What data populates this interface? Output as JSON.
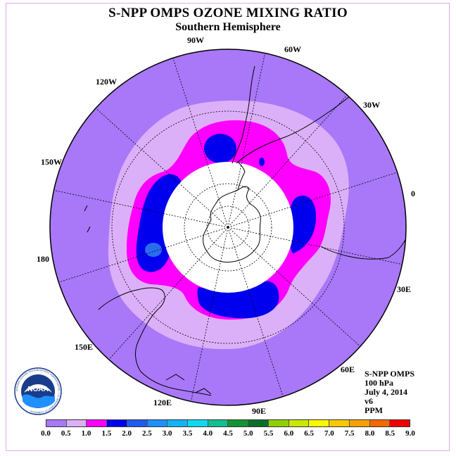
{
  "header": {
    "title": "S-NPP OMPS OZONE MIXING RATIO",
    "subtitle": "Southern Hemisphere"
  },
  "map": {
    "projection": "south polar stereographic",
    "meridian_labels": [
      "0",
      "30E",
      "60E",
      "90E",
      "120E",
      "150E",
      "180",
      "150W",
      "120W",
      "90W",
      "60W",
      "30W"
    ],
    "colors": {
      "background": "#a878f8",
      "light_ring": "#dcb0f8",
      "magenta": "#ff00ff",
      "blue": "#0000ee",
      "mid_blue": "#2a6cf0",
      "no_data": "#ffffff",
      "coastline": "#000000"
    }
  },
  "info": {
    "lines": [
      "S-NPP OMPS",
      "100 hPa",
      "July 4, 2014",
      "v6",
      "PPM"
    ]
  },
  "logo": {
    "label": "NOAA",
    "ring_text": "NATIONAL OCEANIC AND ATMOSPHERIC ADMINISTRATION · U.S. DEPARTMENT OF COMMERCE"
  },
  "legend": {
    "ticks": [
      "0.0",
      "0.5",
      "1.0",
      "1.5",
      "2.0",
      "2.5",
      "3.0",
      "3.5",
      "4.0",
      "4.5",
      "5.0",
      "5.5",
      "6.0",
      "6.5",
      "7.0",
      "7.5",
      "8.0",
      "8.5",
      "9.0"
    ],
    "colors": [
      "#a878f8",
      "#dcb0f8",
      "#ff00ff",
      "#0000ee",
      "#1e5cf0",
      "#1e90ff",
      "#10b4f4",
      "#10d8ee",
      "#10c090",
      "#119432",
      "#0a6e28",
      "#90d000",
      "#c8e800",
      "#f8f800",
      "#f8c800",
      "#f8a000",
      "#f86800",
      "#f00000",
      "#8b5a3c"
    ]
  }
}
